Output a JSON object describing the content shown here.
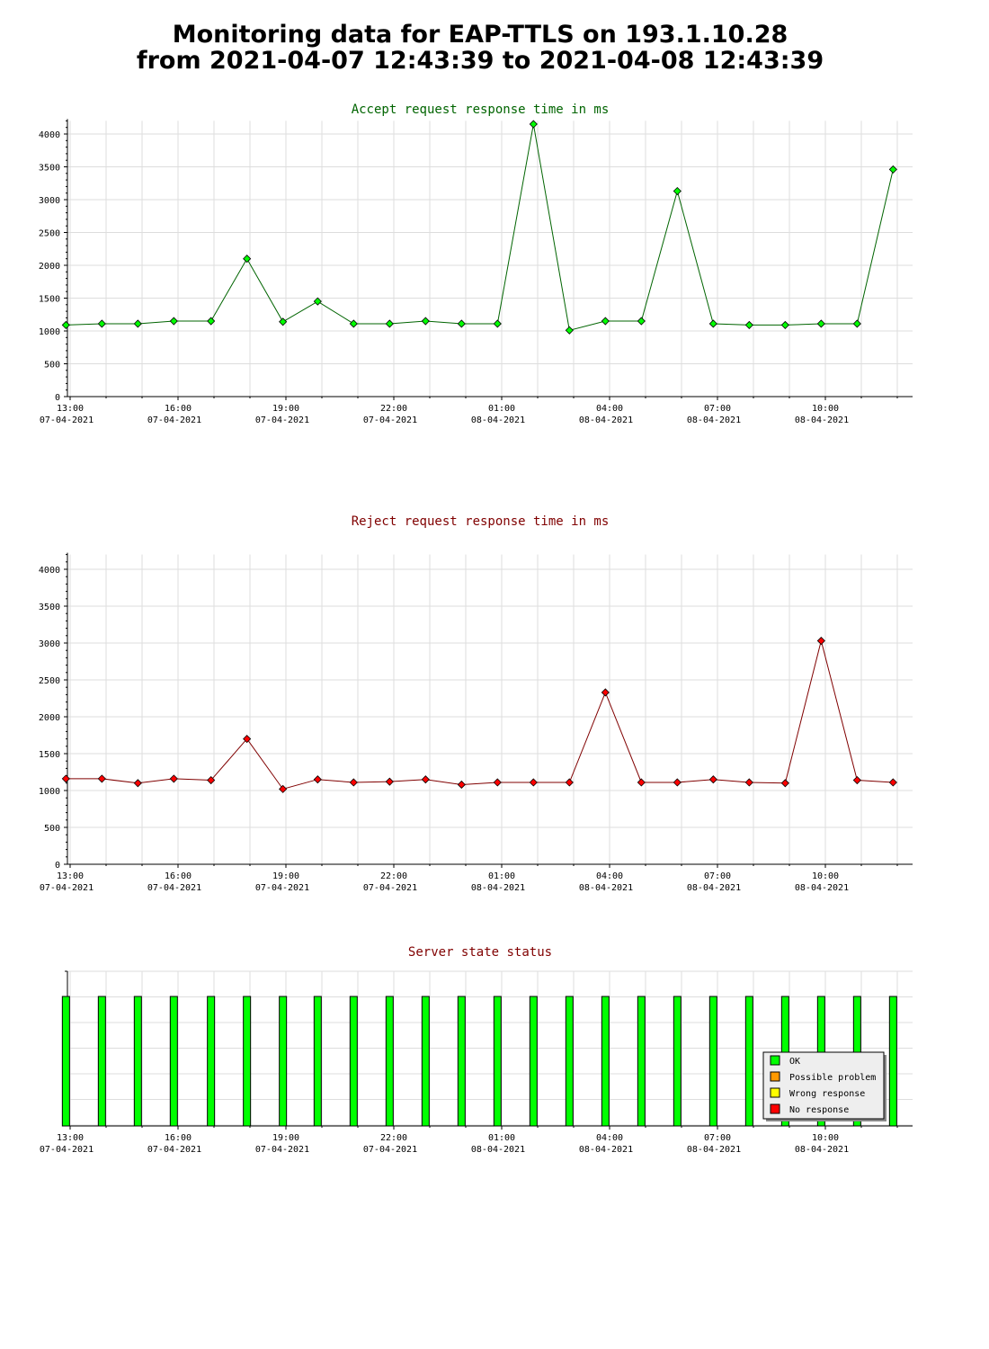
{
  "page": {
    "title_line1": "Monitoring data for EAP-TTLS on 193.1.10.28",
    "title_line2": "from 2021-04-07 12:43:39 to 2021-04-08 12:43:39"
  },
  "colors": {
    "accept_title": "#006400",
    "reject_title": "#800000",
    "state_title": "#800000",
    "accept_line": "#006400",
    "accept_marker": "#00ff00",
    "reject_line": "#800000",
    "reject_marker": "#ff0000",
    "grid": "#dddddd",
    "ok": "#00ff00",
    "possible_problem": "#ff9900",
    "wrong_response": "#ffff00",
    "no_response": "#ff0000"
  },
  "x_ticks": [
    {
      "time": "13:00",
      "date": "07-04-2021"
    },
    {
      "time": "16:00",
      "date": "07-04-2021"
    },
    {
      "time": "19:00",
      "date": "07-04-2021"
    },
    {
      "time": "22:00",
      "date": "07-04-2021"
    },
    {
      "time": "01:00",
      "date": "08-04-2021"
    },
    {
      "time": "04:00",
      "date": "08-04-2021"
    },
    {
      "time": "07:00",
      "date": "08-04-2021"
    },
    {
      "time": "10:00",
      "date": "08-04-2021"
    }
  ],
  "chart_data": [
    {
      "type": "line",
      "title": "Accept request response time in ms",
      "ylim": [
        0,
        4200
      ],
      "yticks": [
        0,
        500,
        1000,
        1500,
        2000,
        2500,
        3000,
        3500,
        4000
      ],
      "grid": true,
      "x": [
        "2021-04-07 12:53",
        "2021-04-07 13:53",
        "2021-04-07 14:53",
        "2021-04-07 15:53",
        "2021-04-07 16:55",
        "2021-04-07 17:55",
        "2021-04-07 18:55",
        "2021-04-07 19:53",
        "2021-04-07 20:53",
        "2021-04-07 21:53",
        "2021-04-07 22:53",
        "2021-04-07 23:53",
        "2021-04-08 00:53",
        "2021-04-08 01:53",
        "2021-04-08 02:53",
        "2021-04-08 03:53",
        "2021-04-08 04:53",
        "2021-04-08 05:53",
        "2021-04-08 06:53",
        "2021-04-08 07:53",
        "2021-04-08 08:53",
        "2021-04-08 09:53",
        "2021-04-08 10:53",
        "2021-04-08 11:53"
      ],
      "series": [
        {
          "values": [
            1090,
            1110,
            1110,
            1150,
            1150,
            2100,
            1140,
            1450,
            1110,
            1110,
            1150,
            1110,
            1110,
            4150,
            1010,
            1150,
            1150,
            3130,
            1110,
            1090,
            1090,
            1110,
            1110,
            3460
          ]
        }
      ]
    },
    {
      "type": "line",
      "title": "Reject request response time in ms",
      "ylim": [
        0,
        4200
      ],
      "yticks": [
        0,
        500,
        1000,
        1500,
        2000,
        2500,
        3000,
        3500,
        4000
      ],
      "grid": true,
      "x": [
        "2021-04-07 12:53",
        "2021-04-07 13:53",
        "2021-04-07 14:53",
        "2021-04-07 15:53",
        "2021-04-07 16:55",
        "2021-04-07 17:55",
        "2021-04-07 18:55",
        "2021-04-07 19:53",
        "2021-04-07 20:53",
        "2021-04-07 21:53",
        "2021-04-07 22:53",
        "2021-04-07 23:53",
        "2021-04-08 00:53",
        "2021-04-08 01:53",
        "2021-04-08 02:53",
        "2021-04-08 03:53",
        "2021-04-08 04:53",
        "2021-04-08 05:53",
        "2021-04-08 06:53",
        "2021-04-08 07:53",
        "2021-04-08 08:53",
        "2021-04-08 09:53",
        "2021-04-08 10:53",
        "2021-04-08 11:53"
      ],
      "series": [
        {
          "values": [
            1160,
            1160,
            1100,
            1160,
            1140,
            1700,
            1020,
            1150,
            1110,
            1120,
            1150,
            1080,
            1110,
            1110,
            1110,
            2330,
            1110,
            1110,
            1150,
            1110,
            1100,
            3030,
            1140,
            1110
          ]
        }
      ]
    },
    {
      "type": "bar",
      "title": "Server state status",
      "grid": true,
      "x": [
        "2021-04-07 12:53",
        "2021-04-07 13:53",
        "2021-04-07 14:53",
        "2021-04-07 15:53",
        "2021-04-07 16:55",
        "2021-04-07 17:55",
        "2021-04-07 18:55",
        "2021-04-07 19:53",
        "2021-04-07 20:53",
        "2021-04-07 21:53",
        "2021-04-07 22:53",
        "2021-04-07 23:53",
        "2021-04-08 00:53",
        "2021-04-08 01:53",
        "2021-04-08 02:53",
        "2021-04-08 03:53",
        "2021-04-08 04:53",
        "2021-04-08 05:53",
        "2021-04-08 06:53",
        "2021-04-08 07:53",
        "2021-04-08 08:53",
        "2021-04-08 09:53",
        "2021-04-08 10:53",
        "2021-04-08 11:53"
      ],
      "series": [
        {
          "name": "OK",
          "values": [
            1,
            1,
            1,
            1,
            1,
            1,
            1,
            1,
            1,
            1,
            1,
            1,
            1,
            1,
            1,
            1,
            1,
            1,
            1,
            1,
            1,
            1,
            1,
            1
          ]
        }
      ],
      "legend": {
        "placement": "bottom-right",
        "items": [
          {
            "label": "OK",
            "color": "#00ff00"
          },
          {
            "label": "Possible problem",
            "color": "#ff9900"
          },
          {
            "label": "Wrong response",
            "color": "#ffff00"
          },
          {
            "label": "No response",
            "color": "#ff0000"
          }
        ]
      }
    }
  ]
}
